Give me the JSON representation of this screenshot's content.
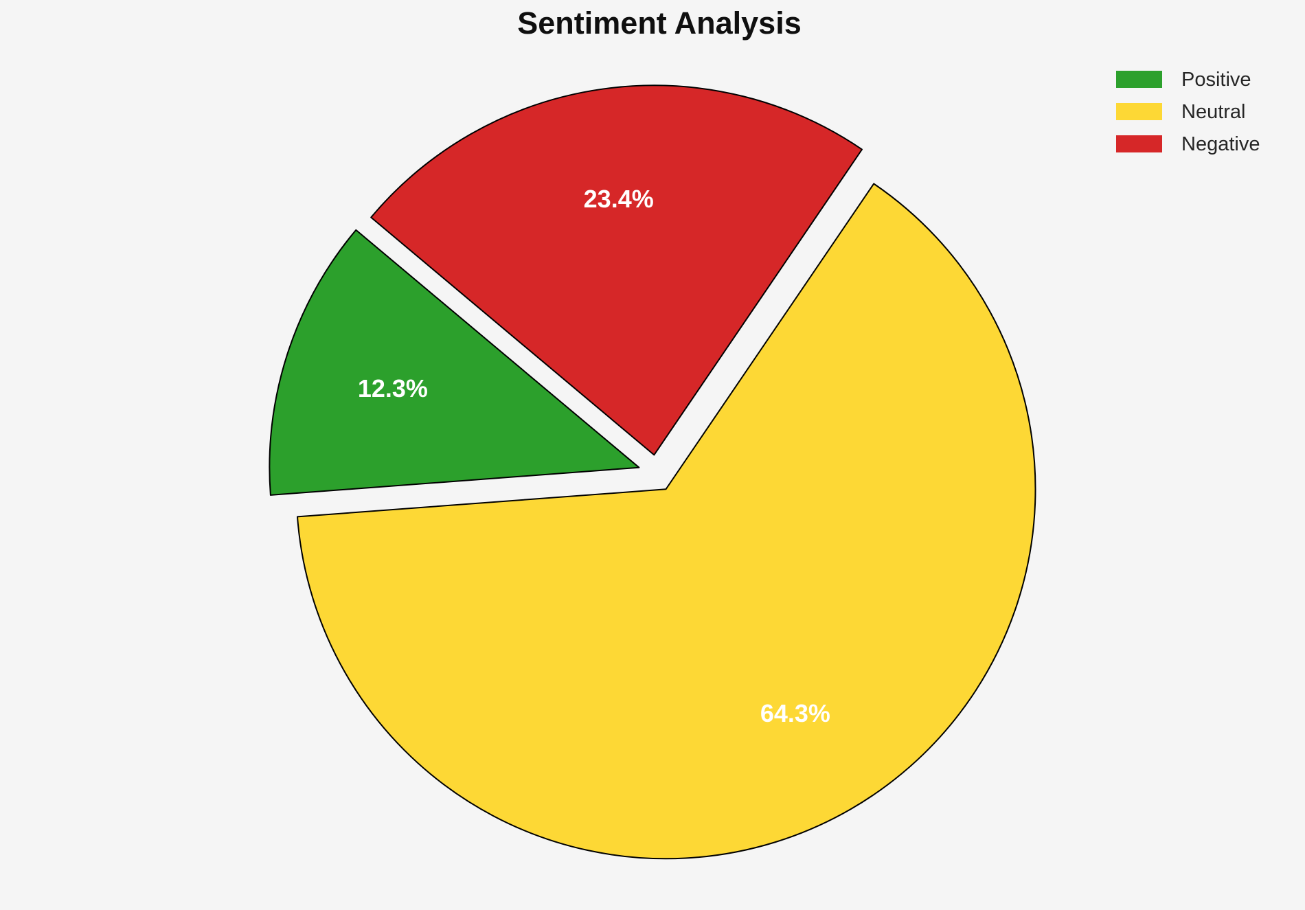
{
  "title": "Sentiment Analysis",
  "colors": {
    "background": "#f5f5f5",
    "title_text": "#0f0f0f",
    "legend_text": "#262626",
    "pct_text": "#ffffff",
    "wedge_edge": "#000000"
  },
  "chart_data": {
    "type": "pie",
    "title": "Sentiment Analysis",
    "categories": [
      "Positive",
      "Neutral",
      "Negative"
    ],
    "values": [
      12.3,
      64.3,
      23.4
    ],
    "pct_labels": [
      "12.3%",
      "64.3%",
      "23.4%"
    ],
    "colors": [
      "#2ca02c",
      "#fdd835",
      "#d62728"
    ],
    "start_angle": 140,
    "direction": "counterclockwise",
    "explode": 0.05,
    "pct_distance": 0.7,
    "edge_color": "#000000",
    "edge_width": 2,
    "legend": {
      "position": "upper right",
      "entries": [
        "Positive",
        "Neutral",
        "Negative"
      ]
    }
  }
}
